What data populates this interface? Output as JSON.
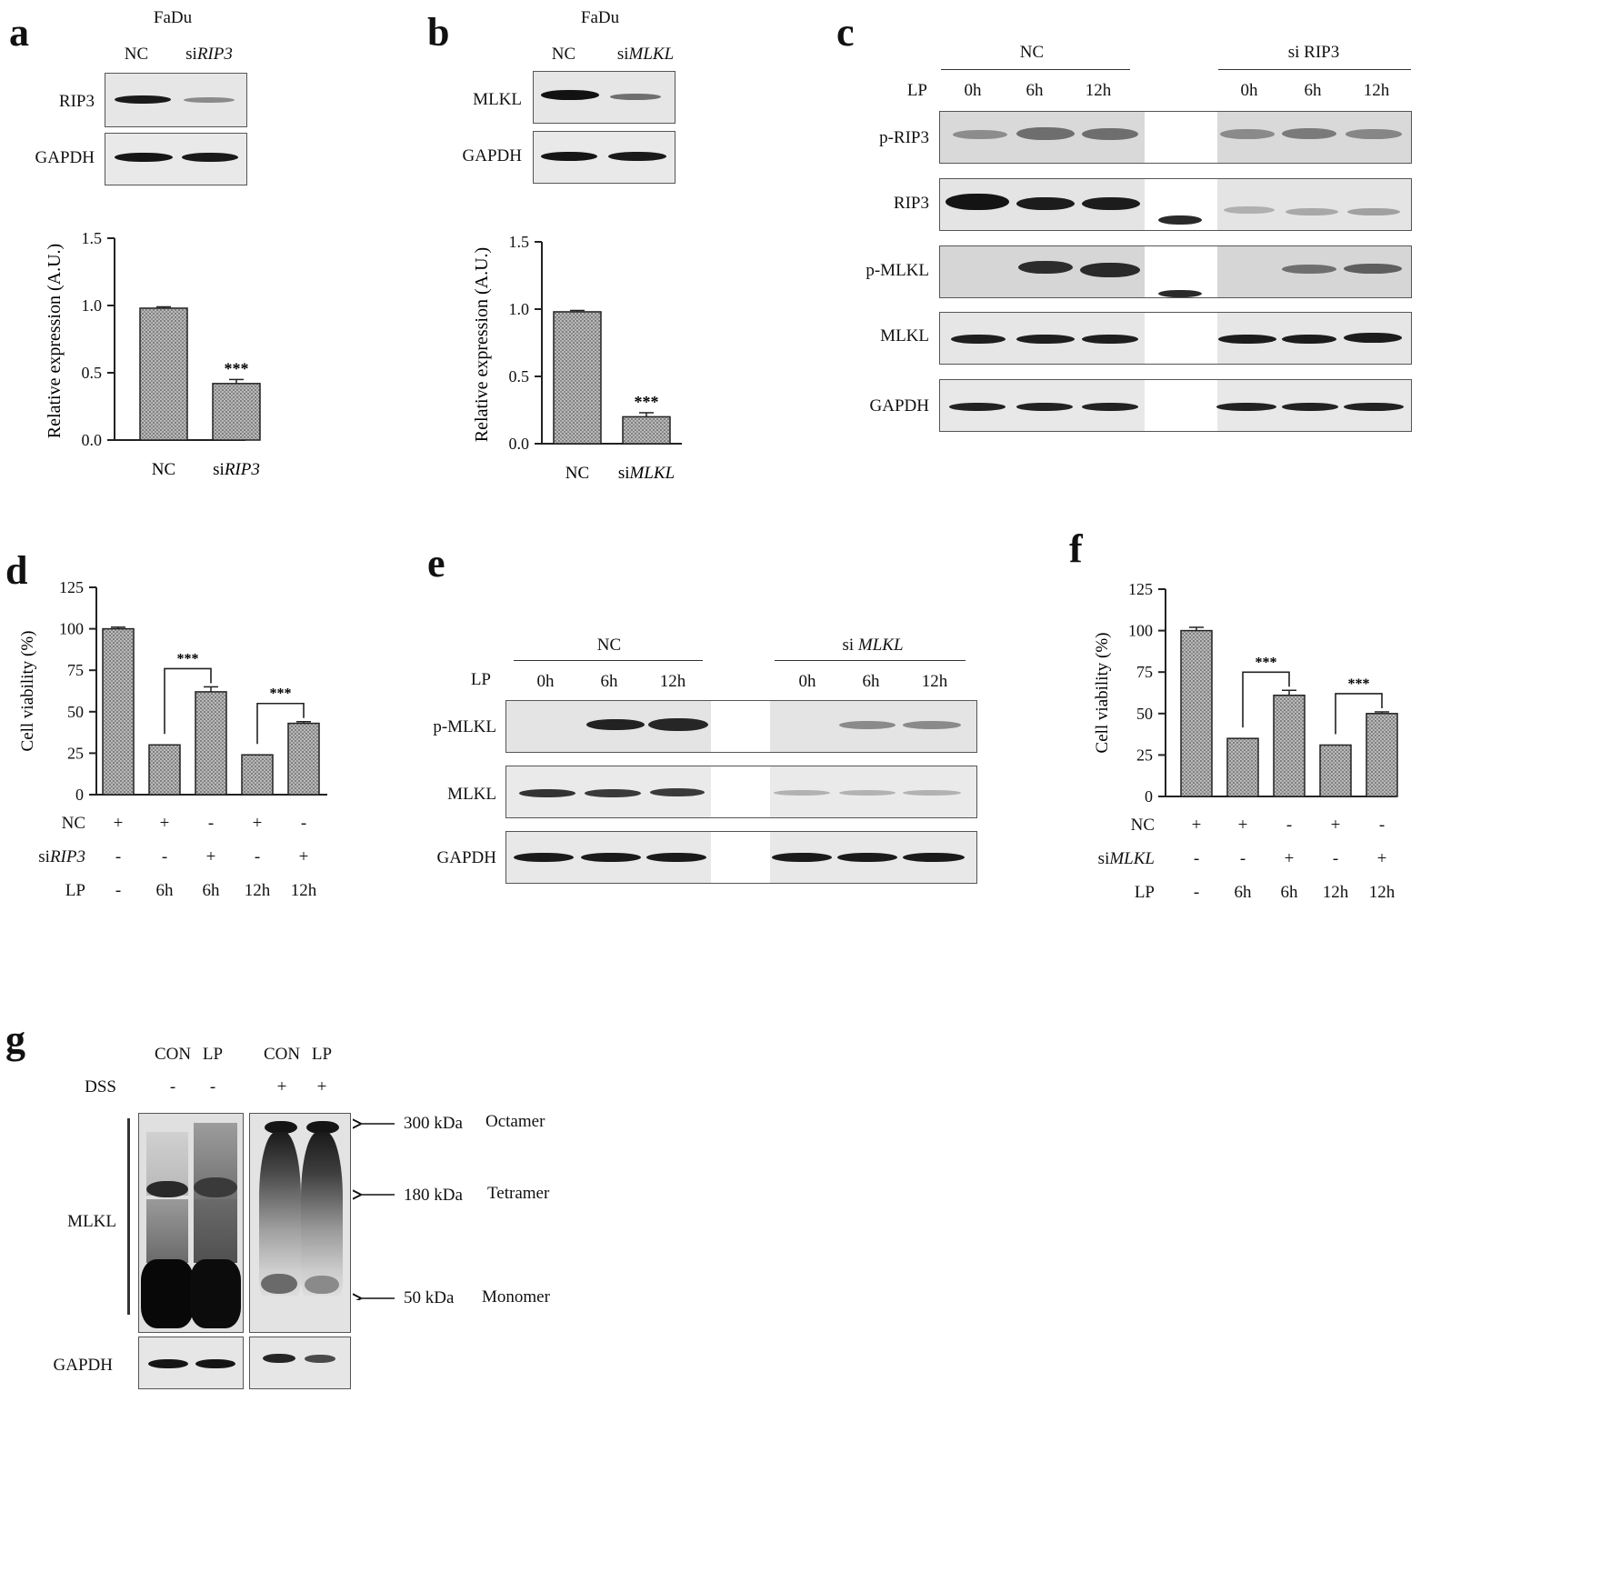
{
  "panels": {
    "a": {
      "letter": "a",
      "cell_line": "FaDu",
      "lanes": [
        "NC",
        "si",
        "RIP3"
      ],
      "blots": [
        "RIP3",
        "GAPDH"
      ],
      "significance": "***"
    },
    "b": {
      "letter": "b",
      "cell_line": "FaDu",
      "lanes": [
        "NC",
        "si",
        "MLKL"
      ],
      "blots": [
        "MLKL",
        "GAPDH"
      ],
      "significance": "***"
    },
    "c": {
      "letter": "c",
      "groups": [
        "NC",
        "si RIP3"
      ],
      "row_label": "LP",
      "times": [
        "0h",
        "6h",
        "12h"
      ],
      "blots": [
        "p-RIP3",
        "RIP3",
        "p-MLKL",
        "MLKL",
        "GAPDH"
      ]
    },
    "d": {
      "letter": "d",
      "rows": [
        {
          "label": "NC",
          "values": [
            "+",
            "+",
            "-",
            "+",
            "-"
          ]
        },
        {
          "label": "RIP3",
          "prefix": "si",
          "values": [
            "-",
            "-",
            "+",
            "-",
            "+"
          ]
        },
        {
          "label": "LP",
          "values": [
            "-",
            "6h",
            "6h",
            "12h",
            "12h"
          ]
        }
      ],
      "significance": "***"
    },
    "e": {
      "letter": "e",
      "groups": [
        "NC",
        "si MLKL"
      ],
      "group2_prefix": "si ",
      "group2_gene": "MLKL",
      "row_label": "LP",
      "times": [
        "0h",
        "6h",
        "12h"
      ],
      "blots": [
        "p-MLKL",
        "MLKL",
        "GAPDH"
      ]
    },
    "f": {
      "letter": "f",
      "rows": [
        {
          "label": "NC",
          "values": [
            "+",
            "+",
            "-",
            "+",
            "-"
          ]
        },
        {
          "label": "MLKL",
          "prefix": "si",
          "values": [
            "-",
            "-",
            "+",
            "-",
            "+"
          ]
        },
        {
          "label": "LP",
          "values": [
            "-",
            "6h",
            "6h",
            "12h",
            "12h"
          ]
        }
      ],
      "significance": "***"
    },
    "g": {
      "letter": "g",
      "lanes": [
        "CON",
        "LP",
        "CON",
        "LP"
      ],
      "dss_label": "DSS",
      "dss": [
        "-",
        "-",
        "+",
        "+"
      ],
      "blot": "MLKL",
      "loading": "GAPDH",
      "markers": [
        {
          "size": "300 kDa",
          "form": "Octamer"
        },
        {
          "size": "180 kDa",
          "form": "Tetramer"
        },
        {
          "size": "50 kDa",
          "form": "Monomer"
        }
      ]
    }
  },
  "chart_data": [
    {
      "panel": "a",
      "type": "bar",
      "categories": [
        "NC",
        "siRIP3"
      ],
      "values": [
        0.98,
        0.42
      ],
      "errors": [
        0.01,
        0.03
      ],
      "ylabel": "Relative expression (A.U.)",
      "ylim": [
        0,
        1.5
      ],
      "yticks": [
        "0.0",
        "0.5",
        "1.0",
        "1.5"
      ],
      "significance": [
        "",
        "***"
      ]
    },
    {
      "panel": "b",
      "type": "bar",
      "categories": [
        "NC",
        "siMLKL"
      ],
      "values": [
        0.98,
        0.2
      ],
      "errors": [
        0.01,
        0.03
      ],
      "ylabel": "Relative expression (A.U.)",
      "ylim": [
        0,
        1.5
      ],
      "yticks": [
        "0.0",
        "0.5",
        "1.0",
        "1.5"
      ],
      "significance": [
        "",
        "***"
      ]
    },
    {
      "panel": "d",
      "type": "bar",
      "values": [
        100,
        30,
        62,
        24,
        43
      ],
      "errors": [
        1,
        0,
        3,
        0,
        1
      ],
      "ylabel": "Cell viability (%)",
      "ylim": [
        0,
        125
      ],
      "yticks": [
        "0",
        "25",
        "50",
        "75",
        "100",
        "125"
      ],
      "comparisons": [
        {
          "from": 1,
          "to": 2,
          "label": "***"
        },
        {
          "from": 3,
          "to": 4,
          "label": "***"
        }
      ]
    },
    {
      "panel": "f",
      "type": "bar",
      "values": [
        100,
        35,
        61,
        31,
        50
      ],
      "errors": [
        2,
        0,
        3,
        0,
        1
      ],
      "ylabel": "Cell viability (%)",
      "ylim": [
        0,
        125
      ],
      "yticks": [
        "0",
        "25",
        "50",
        "75",
        "100",
        "125"
      ],
      "comparisons": [
        {
          "from": 1,
          "to": 2,
          "label": "***"
        },
        {
          "from": 3,
          "to": 4,
          "label": "***"
        }
      ]
    }
  ]
}
